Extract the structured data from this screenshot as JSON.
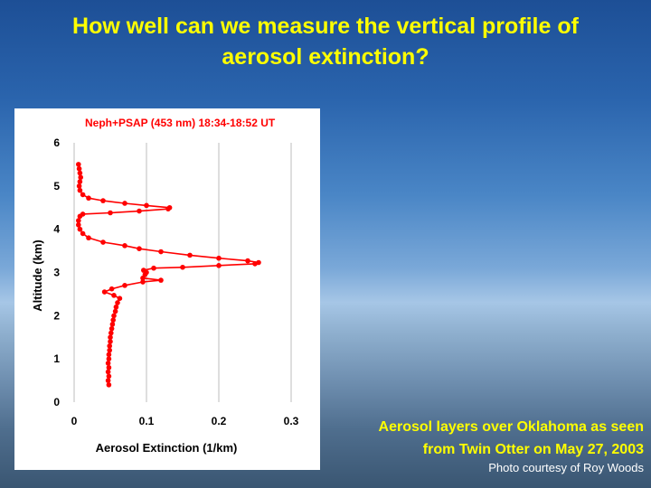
{
  "slide": {
    "title_line1": "How well can we measure the vertical profile of",
    "title_line2": "aerosol extinction?",
    "caption_line1": "Aerosol layers over Oklahoma as seen",
    "caption_line2": "from Twin Otter on May 27, 2003",
    "credit": "Photo courtesy of Roy Woods"
  },
  "colors": {
    "title": "#ffff00",
    "series": "#ff0000",
    "credit": "#ffffff"
  },
  "chart_data": {
    "type": "scatter",
    "title": "Neph+PSAP (453 nm) 18:34-18:52 UT",
    "xlabel": "Aerosol Extinction (1/km)",
    "ylabel": "Altitude (km)",
    "xlim": [
      0,
      0.3
    ],
    "ylim": [
      0,
      6
    ],
    "xticks": [
      "0",
      "0.1",
      "0.2",
      "0.3"
    ],
    "yticks": [
      "0",
      "1",
      "2",
      "3",
      "4",
      "5",
      "6"
    ],
    "grid": "vertical",
    "series": [
      {
        "values": [
          [
            0.048,
            0.4
          ],
          [
            0.047,
            0.5
          ],
          [
            0.048,
            0.6
          ],
          [
            0.047,
            0.7
          ],
          [
            0.048,
            0.8
          ],
          [
            0.047,
            0.9
          ],
          [
            0.048,
            1.0
          ],
          [
            0.048,
            1.1
          ],
          [
            0.049,
            1.2
          ],
          [
            0.049,
            1.3
          ],
          [
            0.05,
            1.4
          ],
          [
            0.05,
            1.5
          ],
          [
            0.051,
            1.6
          ],
          [
            0.052,
            1.7
          ],
          [
            0.053,
            1.8
          ],
          [
            0.054,
            1.9
          ],
          [
            0.055,
            2.0
          ],
          [
            0.057,
            2.1
          ],
          [
            0.058,
            2.2
          ],
          [
            0.06,
            2.3
          ],
          [
            0.063,
            2.4
          ],
          [
            0.055,
            2.47
          ],
          [
            0.042,
            2.55
          ],
          [
            0.052,
            2.62
          ],
          [
            0.07,
            2.7
          ],
          [
            0.095,
            2.78
          ],
          [
            0.12,
            2.82
          ],
          [
            0.095,
            2.87
          ],
          [
            0.098,
            2.95
          ],
          [
            0.1,
            3.0
          ],
          [
            0.096,
            3.05
          ],
          [
            0.11,
            3.1
          ],
          [
            0.15,
            3.12
          ],
          [
            0.2,
            3.16
          ],
          [
            0.25,
            3.2
          ],
          [
            0.255,
            3.23
          ],
          [
            0.24,
            3.27
          ],
          [
            0.2,
            3.33
          ],
          [
            0.16,
            3.4
          ],
          [
            0.12,
            3.48
          ],
          [
            0.09,
            3.55
          ],
          [
            0.07,
            3.62
          ],
          [
            0.04,
            3.7
          ],
          [
            0.02,
            3.8
          ],
          [
            0.012,
            3.9
          ],
          [
            0.008,
            4.0
          ],
          [
            0.006,
            4.1
          ],
          [
            0.006,
            4.2
          ],
          [
            0.008,
            4.3
          ],
          [
            0.012,
            4.35
          ],
          [
            0.05,
            4.38
          ],
          [
            0.09,
            4.42
          ],
          [
            0.13,
            4.47
          ],
          [
            0.132,
            4.5
          ],
          [
            0.1,
            4.55
          ],
          [
            0.07,
            4.6
          ],
          [
            0.04,
            4.66
          ],
          [
            0.02,
            4.72
          ],
          [
            0.012,
            4.8
          ],
          [
            0.008,
            4.9
          ],
          [
            0.007,
            5.0
          ],
          [
            0.008,
            5.1
          ],
          [
            0.009,
            5.2
          ],
          [
            0.008,
            5.3
          ],
          [
            0.007,
            5.4
          ],
          [
            0.006,
            5.5
          ]
        ]
      }
    ]
  }
}
